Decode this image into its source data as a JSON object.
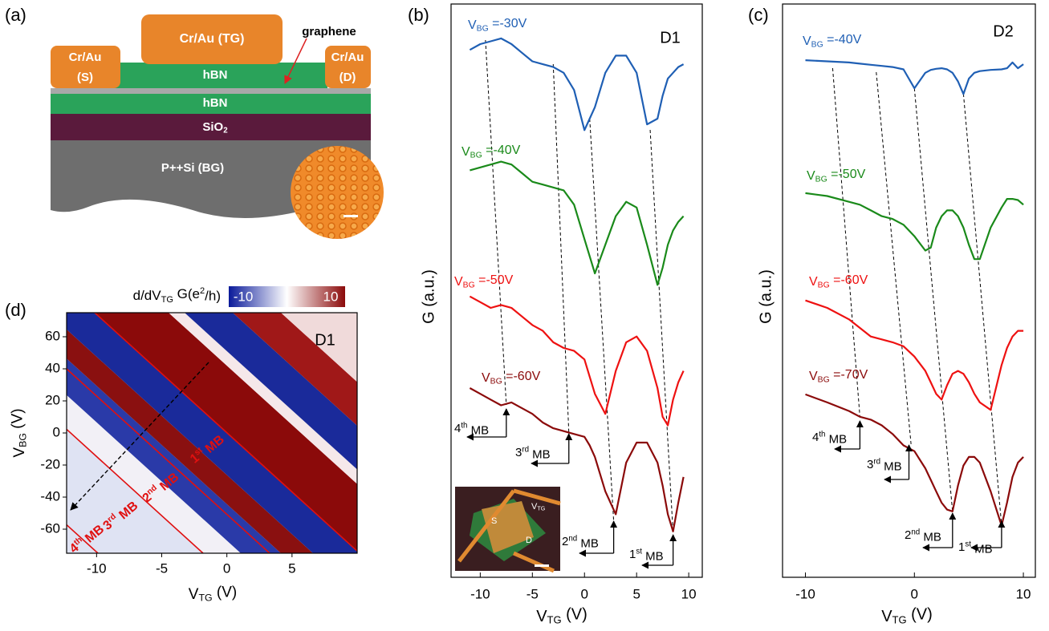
{
  "panel_labels": [
    "(a)",
    "(b)",
    "(c)",
    "(d)"
  ],
  "diagram": {
    "top_gate": "Cr/Au (TG)",
    "source": [
      "Cr/Au",
      "(S)"
    ],
    "drain": [
      "Cr/Au",
      "(D)"
    ],
    "graphene": "graphene",
    "top_hbn": "hBN",
    "bottom_hbn": "hBN",
    "oxide": "SiO2",
    "back_gate": "P++Si (BG)"
  },
  "inset": {
    "source": "S",
    "drain": "D",
    "gate": "VTG"
  },
  "chart_data": [
    {
      "type": "line",
      "label": "D1",
      "xlabel": "VTG (V)",
      "ylabel": "G (a.u.)",
      "xlim": [
        -12.8,
        11.3
      ],
      "ylim": [
        0,
        100
      ],
      "xticks": [
        -10,
        -5,
        0,
        5,
        10
      ],
      "x": [
        -11,
        -10,
        -9,
        -8,
        -7,
        -6,
        -5,
        -4,
        -3,
        -2,
        -1,
        0,
        0.5,
        1,
        2,
        3,
        4,
        5,
        6,
        7,
        7.5,
        8,
        8.5,
        9,
        9.5
      ],
      "series": [
        {
          "name": "VBG =-30V",
          "color": "#1f5fb4",
          "values": [
            92,
            93,
            93.5,
            94,
            93,
            91.5,
            90,
            89.5,
            89,
            88,
            85,
            78,
            80,
            82,
            88,
            91,
            91,
            88,
            79,
            80,
            84,
            87,
            88,
            89,
            89.5
          ]
        },
        {
          "name": "VBG =-40V",
          "color": "#1a8a1a",
          "values": [
            71,
            71.5,
            72,
            72.5,
            72,
            70.5,
            69,
            68.5,
            68,
            67.5,
            65,
            59,
            56,
            53,
            58,
            63,
            65.5,
            64.5,
            58,
            51,
            54,
            58,
            60.5,
            62,
            63
          ]
        },
        {
          "name": "VBG =-50V",
          "color": "#ee1111",
          "values": [
            49,
            48,
            47,
            47.5,
            47,
            45.5,
            44,
            43,
            41,
            40,
            39.5,
            38,
            35,
            32,
            28.5,
            36,
            41,
            42,
            39.5,
            33,
            28,
            26.5,
            31,
            34,
            36
          ]
        },
        {
          "name": "VBG =-60V",
          "color": "#8b0a0a",
          "values": [
            33,
            32,
            31,
            30,
            30.5,
            29.5,
            28.5,
            27,
            26,
            25.5,
            25,
            24.5,
            23,
            21,
            15,
            11,
            20,
            23.5,
            23.5,
            20,
            16,
            11,
            8,
            13,
            17.5
          ]
        }
      ],
      "annotations": [
        "4th MB",
        "3rd MB",
        "2nd MB",
        "1st MB"
      ]
    },
    {
      "type": "line",
      "label": "D2",
      "xlabel": "VTG (V)",
      "ylabel": "G (a.u.)",
      "xlim": [
        -12.1,
        11.1
      ],
      "ylim": [
        0,
        100
      ],
      "xticks": [
        -10,
        0,
        10
      ],
      "x": [
        -10,
        -8,
        -6,
        -5,
        -4,
        -3,
        -2,
        -1,
        0,
        1,
        1.5,
        2,
        2.5,
        3,
        3.5,
        4,
        4.5,
        5,
        5.5,
        6,
        7,
        8,
        8.5,
        9,
        9.5,
        10
      ],
      "series": [
        {
          "name": "VBG =-40V",
          "color": "#1f5fb4",
          "values": [
            90.2,
            90,
            89.8,
            89.6,
            89.4,
            89.2,
            89,
            88.6,
            85.3,
            88,
            88.5,
            88.7,
            88.8,
            88.6,
            88,
            86.5,
            84.3,
            87,
            88,
            88.3,
            88.5,
            88.6,
            88.8,
            89.8,
            88.8,
            89.5
          ]
        },
        {
          "name": "VBG =-50V",
          "color": "#1a8a1a",
          "values": [
            67,
            66.5,
            65.5,
            65,
            64,
            63,
            62.5,
            61.5,
            59.5,
            57,
            57.5,
            61,
            63,
            64,
            64,
            63,
            61,
            58,
            55.5,
            55.5,
            61,
            64.5,
            66,
            66,
            65.8,
            65
          ]
        },
        {
          "name": "VBG =-60V",
          "color": "#ee1111",
          "values": [
            48.3,
            47,
            45,
            43.5,
            42,
            41.5,
            41,
            40.3,
            38.5,
            36,
            34,
            32,
            31,
            33.5,
            35.5,
            36,
            35.5,
            34,
            32,
            30.5,
            29.2,
            37,
            40,
            42,
            43,
            43
          ]
        },
        {
          "name": "VBG =-70V",
          "color": "#8b0a0a",
          "values": [
            31.9,
            30.5,
            29,
            28,
            27.5,
            26.5,
            25,
            23,
            22,
            19,
            17,
            15,
            13,
            11.8,
            11.5,
            16,
            19.5,
            21,
            21,
            20,
            15,
            9,
            13,
            17.5,
            20,
            21
          ]
        }
      ],
      "annotations": [
        "4th MB",
        "3rd MB",
        "2nd MB",
        "1st MB"
      ]
    },
    {
      "type": "heatmap",
      "label": "D1",
      "xlabel": "VTG (V)",
      "ylabel": "VBG (V)",
      "xlim": [
        -12.3,
        10
      ],
      "ylim": [
        -75,
        75
      ],
      "xticks": [
        -10,
        -5,
        0,
        5
      ],
      "yticks": [
        -60,
        -40,
        -20,
        0,
        20,
        40,
        60
      ],
      "colorbar": {
        "label": "d/dVTG G(e2/h)",
        "lim": [
          -10,
          10
        ],
        "ticks": [
          -10,
          10
        ]
      },
      "annotations": [
        "1st MB",
        "2nd MB",
        "3rd MB",
        "4th MB"
      ]
    }
  ]
}
